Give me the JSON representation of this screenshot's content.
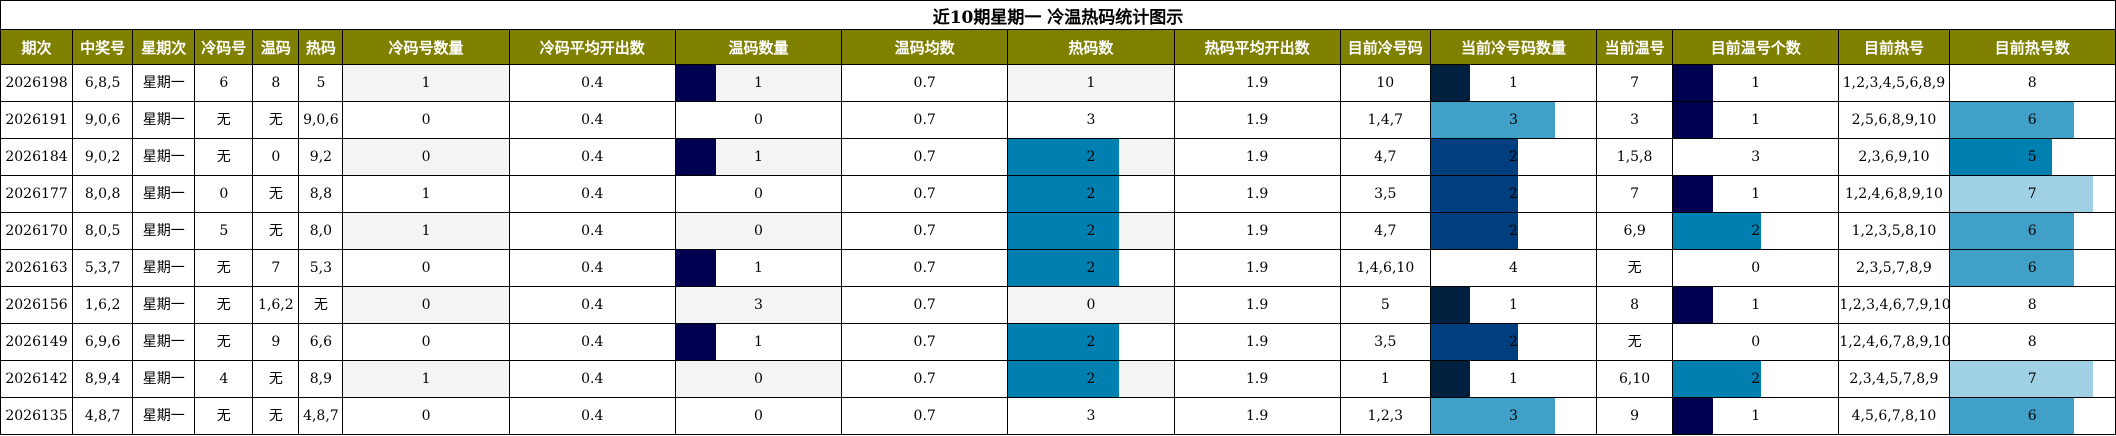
{
  "title": "近10期星期一 冷温热码统计图示",
  "headers": [
    "期次",
    "中奖号",
    "星期次",
    "冷码号",
    "温码",
    "热码",
    "冷码号数量",
    "冷码平均开出数",
    "温码数量",
    "温码均数",
    "热码数",
    "热码平均开出数",
    "目前冷号码",
    "当前冷号码数量",
    "当前温号",
    "目前温号个数",
    "目前热号",
    "目前热号数"
  ],
  "colors": {
    "header_bg": "#808000",
    "bar_dark_navy": "#000050",
    "bar_navy": "#002040",
    "bar_mid_blue": "#003F7F",
    "bar_teal": "#0080B0",
    "bar_light_teal": "#40A0C8",
    "bar_pale": "#A0D0E4"
  },
  "rows": [
    {
      "qi": "2026198",
      "zjh": "6,8,5",
      "xqc": "星期一",
      "lm": "6",
      "wm": "8",
      "rm": "5",
      "lmsl": "1",
      "lmpj": "0.4",
      "wmsl": "1",
      "wmjs": "0.7",
      "rms": "1",
      "rmpj": "1.9",
      "mqlhm": "10",
      "dqlhmsl": "1",
      "dqwh": "7",
      "mqwhgs": "1",
      "mqrh": "1,2,3,4,5,6,8,9",
      "mqrhs": "8"
    },
    {
      "qi": "2026191",
      "zjh": "9,0,6",
      "xqc": "星期一",
      "lm": "无",
      "wm": "无",
      "rm": "9,0,6",
      "lmsl": "0",
      "lmpj": "0.4",
      "wmsl": "0",
      "wmjs": "0.7",
      "rms": "3",
      "rmpj": "1.9",
      "mqlhm": "1,4,7",
      "dqlhmsl": "3",
      "dqwh": "3",
      "mqwhgs": "1",
      "mqrh": "2,5,6,8,9,10",
      "mqrhs": "6"
    },
    {
      "qi": "2026184",
      "zjh": "9,0,2",
      "xqc": "星期一",
      "lm": "无",
      "wm": "0",
      "rm": "9,2",
      "lmsl": "0",
      "lmpj": "0.4",
      "wmsl": "1",
      "wmjs": "0.7",
      "rms": "2",
      "rmpj": "1.9",
      "mqlhm": "4,7",
      "dqlhmsl": "2",
      "dqwh": "1,5,8",
      "mqwhgs": "3",
      "mqrh": "2,3,6,9,10",
      "mqrhs": "5"
    },
    {
      "qi": "2026177",
      "zjh": "8,0,8",
      "xqc": "星期一",
      "lm": "0",
      "wm": "无",
      "rm": "8,8",
      "lmsl": "1",
      "lmpj": "0.4",
      "wmsl": "0",
      "wmjs": "0.7",
      "rms": "2",
      "rmpj": "1.9",
      "mqlhm": "3,5",
      "dqlhmsl": "2",
      "dqwh": "7",
      "mqwhgs": "1",
      "mqrh": "1,2,4,6,8,9,10",
      "mqrhs": "7"
    },
    {
      "qi": "2026170",
      "zjh": "8,0,5",
      "xqc": "星期一",
      "lm": "5",
      "wm": "无",
      "rm": "8,0",
      "lmsl": "1",
      "lmpj": "0.4",
      "wmsl": "0",
      "wmjs": "0.7",
      "rms": "2",
      "rmpj": "1.9",
      "mqlhm": "4,7",
      "dqlhmsl": "2",
      "dqwh": "6,9",
      "mqwhgs": "2",
      "mqrh": "1,2,3,5,8,10",
      "mqrhs": "6"
    },
    {
      "qi": "2026163",
      "zjh": "5,3,7",
      "xqc": "星期一",
      "lm": "无",
      "wm": "7",
      "rm": "5,3",
      "lmsl": "0",
      "lmpj": "0.4",
      "wmsl": "1",
      "wmjs": "0.7",
      "rms": "2",
      "rmpj": "1.9",
      "mqlhm": "1,4,6,10",
      "dqlhmsl": "4",
      "dqwh": "无",
      "mqwhgs": "0",
      "mqrh": "2,3,5,7,8,9",
      "mqrhs": "6"
    },
    {
      "qi": "2026156",
      "zjh": "1,6,2",
      "xqc": "星期一",
      "lm": "无",
      "wm": "1,6,2",
      "rm": "无",
      "lmsl": "0",
      "lmpj": "0.4",
      "wmsl": "3",
      "wmjs": "0.7",
      "rms": "0",
      "rmpj": "1.9",
      "mqlhm": "5",
      "dqlhmsl": "1",
      "dqwh": "8",
      "mqwhgs": "1",
      "mqrh": "1,2,3,4,6,7,9,10",
      "mqrhs": "8"
    },
    {
      "qi": "2026149",
      "zjh": "6,9,6",
      "xqc": "星期一",
      "lm": "无",
      "wm": "9",
      "rm": "6,6",
      "lmsl": "0",
      "lmpj": "0.4",
      "wmsl": "1",
      "wmjs": "0.7",
      "rms": "2",
      "rmpj": "1.9",
      "mqlhm": "3,5",
      "dqlhmsl": "2",
      "dqwh": "无",
      "mqwhgs": "0",
      "mqrh": "1,2,4,6,7,8,9,10",
      "mqrhs": "8"
    },
    {
      "qi": "2026142",
      "zjh": "8,9,4",
      "xqc": "星期一",
      "lm": "4",
      "wm": "无",
      "rm": "8,9",
      "lmsl": "1",
      "lmpj": "0.4",
      "wmsl": "0",
      "wmjs": "0.7",
      "rms": "2",
      "rmpj": "1.9",
      "mqlhm": "1",
      "dqlhmsl": "1",
      "dqwh": "6,10",
      "mqwhgs": "2",
      "mqrh": "2,3,4,5,7,8,9",
      "mqrhs": "7"
    },
    {
      "qi": "2026135",
      "zjh": "4,8,7",
      "xqc": "星期一",
      "lm": "无",
      "wm": "无",
      "rm": "4,8,7",
      "lmsl": "0",
      "lmpj": "0.4",
      "wmsl": "0",
      "wmjs": "0.7",
      "rms": "3",
      "rmpj": "1.9",
      "mqlhm": "1,2,3",
      "dqlhmsl": "3",
      "dqwh": "9",
      "mqwhgs": "1",
      "mqrh": "4,5,6,7,8,10",
      "mqrhs": "6"
    }
  ]
}
